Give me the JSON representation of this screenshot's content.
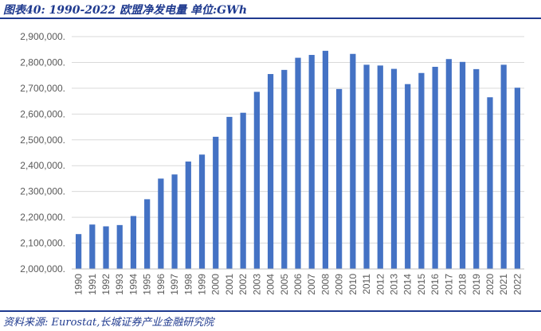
{
  "header": {
    "title": "图表40:  1990-2022 欧盟净发电量 单位:GWh"
  },
  "footer": {
    "source": "资料来源:  Eurostat,长城证券产业金融研究院"
  },
  "colors": {
    "bar": "#4472c4",
    "accent": "#1f3a8f",
    "grid": "#d9d9d9"
  },
  "chart_data": {
    "type": "bar",
    "title": "1990-2022 欧盟净发电量",
    "ylabel": "",
    "xlabel": "",
    "ylim": [
      2000000,
      2900000
    ],
    "y_ticks": [
      2000000,
      2100000,
      2200000,
      2300000,
      2400000,
      2500000,
      2600000,
      2700000,
      2800000,
      2900000
    ],
    "y_tick_labels": [
      "2,000,000.",
      "2,100,000.",
      "2,200,000.",
      "2,300,000.",
      "2,400,000.",
      "2,500,000.",
      "2,600,000.",
      "2,700,000.",
      "2,800,000.",
      "2,900,000."
    ],
    "grid": true,
    "legend": "none",
    "categories": [
      "1990",
      "1991",
      "1992",
      "1993",
      "1994",
      "1995",
      "1996",
      "1997",
      "1998",
      "1999",
      "2000",
      "2001",
      "2002",
      "2003",
      "2004",
      "2005",
      "2006",
      "2007",
      "2008",
      "2009",
      "2010",
      "2011",
      "2012",
      "2013",
      "2014",
      "2015",
      "2016",
      "2017",
      "2018",
      "2019",
      "2020",
      "2021",
      "2022"
    ],
    "values": [
      2135000,
      2172000,
      2165000,
      2170000,
      2205000,
      2270000,
      2350000,
      2366000,
      2416000,
      2443000,
      2512000,
      2589000,
      2605000,
      2686000,
      2755000,
      2771000,
      2818000,
      2829000,
      2845000,
      2697000,
      2833000,
      2791000,
      2788000,
      2775000,
      2716000,
      2759000,
      2783000,
      2813000,
      2802000,
      2774000,
      2665000,
      2791000,
      2702000
    ]
  }
}
